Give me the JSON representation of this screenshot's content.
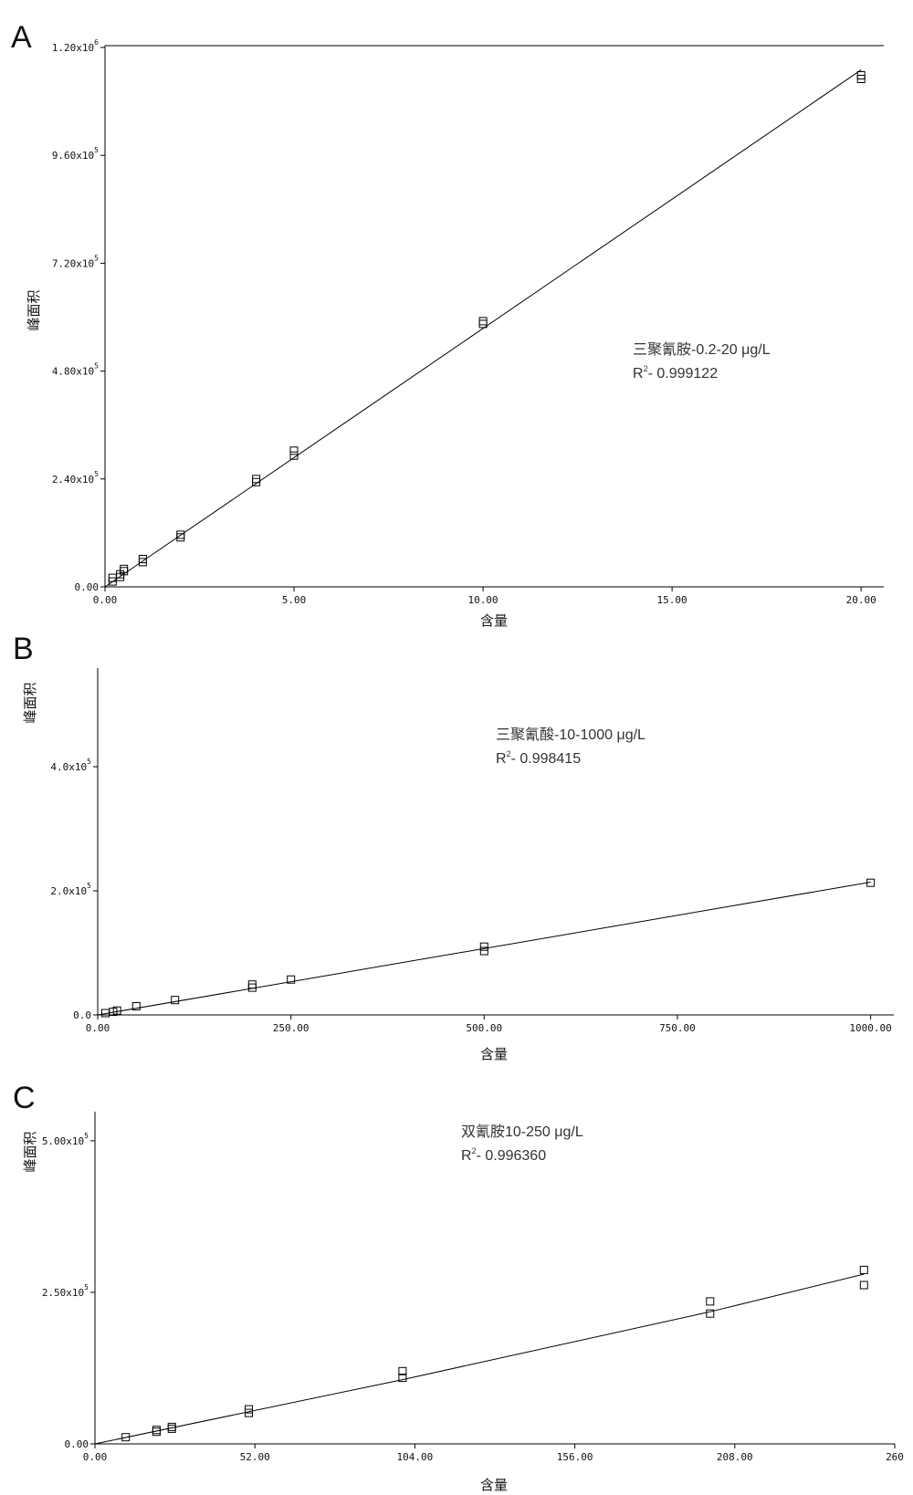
{
  "chart_data": [
    {
      "type": "scatter",
      "panel_label": "A",
      "title": "",
      "xlabel": "含量",
      "ylabel": "峰面积",
      "xlim": [
        0,
        20.6
      ],
      "ylim": [
        0,
        1200000
      ],
      "x_ticks": [
        0,
        5,
        10,
        15,
        20
      ],
      "x_tick_labels": [
        "0.00",
        "5.00",
        "10.00",
        "15.00",
        "20.00"
      ],
      "y_ticks": [
        0,
        240000,
        480000,
        720000,
        960000,
        1200000
      ],
      "y_tick_mantissas": [
        "0.00",
        "2.40x10",
        "4.80x10",
        "7.20x10",
        "9.60x10",
        "1.20x10"
      ],
      "y_tick_exponents": [
        "",
        "5",
        "5",
        "5",
        "5",
        "6"
      ],
      "annotation": {
        "name": "三聚氰胺-0.2-20 μg/L",
        "r2_prefix": "R",
        "r2_exponent": "2",
        "r2_value": "- 0.999122"
      },
      "fit_line": [
        [
          0,
          0
        ],
        [
          20,
          1150000
        ]
      ],
      "points": [
        {
          "x": 0.2,
          "y": 12000
        },
        {
          "x": 0.2,
          "y": 20000
        },
        {
          "x": 0.4,
          "y": 22000
        },
        {
          "x": 0.4,
          "y": 28000
        },
        {
          "x": 0.5,
          "y": 35000
        },
        {
          "x": 0.5,
          "y": 40000
        },
        {
          "x": 1.0,
          "y": 55000
        },
        {
          "x": 1.0,
          "y": 62000
        },
        {
          "x": 2.0,
          "y": 110000
        },
        {
          "x": 2.0,
          "y": 116000
        },
        {
          "x": 4.0,
          "y": 233000
        },
        {
          "x": 4.0,
          "y": 240000
        },
        {
          "x": 5.0,
          "y": 292000
        },
        {
          "x": 5.0,
          "y": 303000
        },
        {
          "x": 10.0,
          "y": 585000
        },
        {
          "x": 10.0,
          "y": 591000
        },
        {
          "x": 20.0,
          "y": 1130000
        },
        {
          "x": 20.0,
          "y": 1138000
        }
      ]
    },
    {
      "type": "scatter",
      "panel_label": "B",
      "title": "",
      "xlabel": "含量",
      "ylabel": "峰面积",
      "xlim": [
        0,
        1030
      ],
      "ylim": [
        0,
        556000
      ],
      "x_ticks": [
        0,
        250,
        500,
        750,
        1000
      ],
      "x_tick_labels": [
        "0.00",
        "250.00",
        "500.00",
        "750.00",
        "1000.00"
      ],
      "y_ticks": [
        0,
        200000,
        400000
      ],
      "y_tick_mantissas": [
        "0.0",
        "2.0x10",
        "4.0x10"
      ],
      "y_tick_exponents": [
        "",
        "5",
        "5"
      ],
      "annotation": {
        "name": "三聚氰酸-10-1000 μg/L",
        "r2_prefix": "R",
        "r2_exponent": "2",
        "r2_value": "- 0.998415"
      },
      "fit_line": [
        [
          0,
          0
        ],
        [
          1000,
          214000
        ]
      ],
      "points": [
        {
          "x": 10,
          "y": 3000
        },
        {
          "x": 20,
          "y": 5000
        },
        {
          "x": 25,
          "y": 7000
        },
        {
          "x": 50,
          "y": 14000
        },
        {
          "x": 100,
          "y": 24000
        },
        {
          "x": 200,
          "y": 44000
        },
        {
          "x": 200,
          "y": 49000
        },
        {
          "x": 250,
          "y": 57000
        },
        {
          "x": 500,
          "y": 103000
        },
        {
          "x": 500,
          "y": 110000
        },
        {
          "x": 1000,
          "y": 213000
        }
      ]
    },
    {
      "type": "scatter",
      "panel_label": "C",
      "title": "",
      "xlabel": "含量",
      "ylabel": "峰面积",
      "xlim": [
        0,
        260
      ],
      "ylim": [
        0,
        545000
      ],
      "x_ticks": [
        0,
        52,
        104,
        156,
        208,
        260
      ],
      "x_tick_labels": [
        "0.00",
        "52.00",
        "104.00",
        "156.00",
        "208.00",
        "260"
      ],
      "y_ticks": [
        0,
        250000,
        500000
      ],
      "y_tick_mantissas": [
        "0.00",
        "2.50x10",
        "5.00x10"
      ],
      "y_tick_exponents": [
        "",
        "5",
        "5"
      ],
      "annotation": {
        "name": "双氰胺10-250 μg/L",
        "r2_prefix": "R",
        "r2_exponent": "2",
        "r2_value": "- 0.996360"
      },
      "fit_line": [
        [
          0,
          0
        ],
        [
          100,
          106000
        ],
        [
          200,
          218000
        ],
        [
          208,
          228000
        ],
        [
          250,
          280000
        ]
      ],
      "points": [
        {
          "x": 10,
          "y": 11000
        },
        {
          "x": 20,
          "y": 20000
        },
        {
          "x": 20,
          "y": 23000
        },
        {
          "x": 25,
          "y": 25000
        },
        {
          "x": 25,
          "y": 28000
        },
        {
          "x": 50,
          "y": 51000
        },
        {
          "x": 50,
          "y": 57000
        },
        {
          "x": 100,
          "y": 109000
        },
        {
          "x": 100,
          "y": 120000
        },
        {
          "x": 200,
          "y": 215000
        },
        {
          "x": 200,
          "y": 235000
        },
        {
          "x": 250,
          "y": 262000
        },
        {
          "x": 250,
          "y": 287000
        }
      ]
    }
  ]
}
